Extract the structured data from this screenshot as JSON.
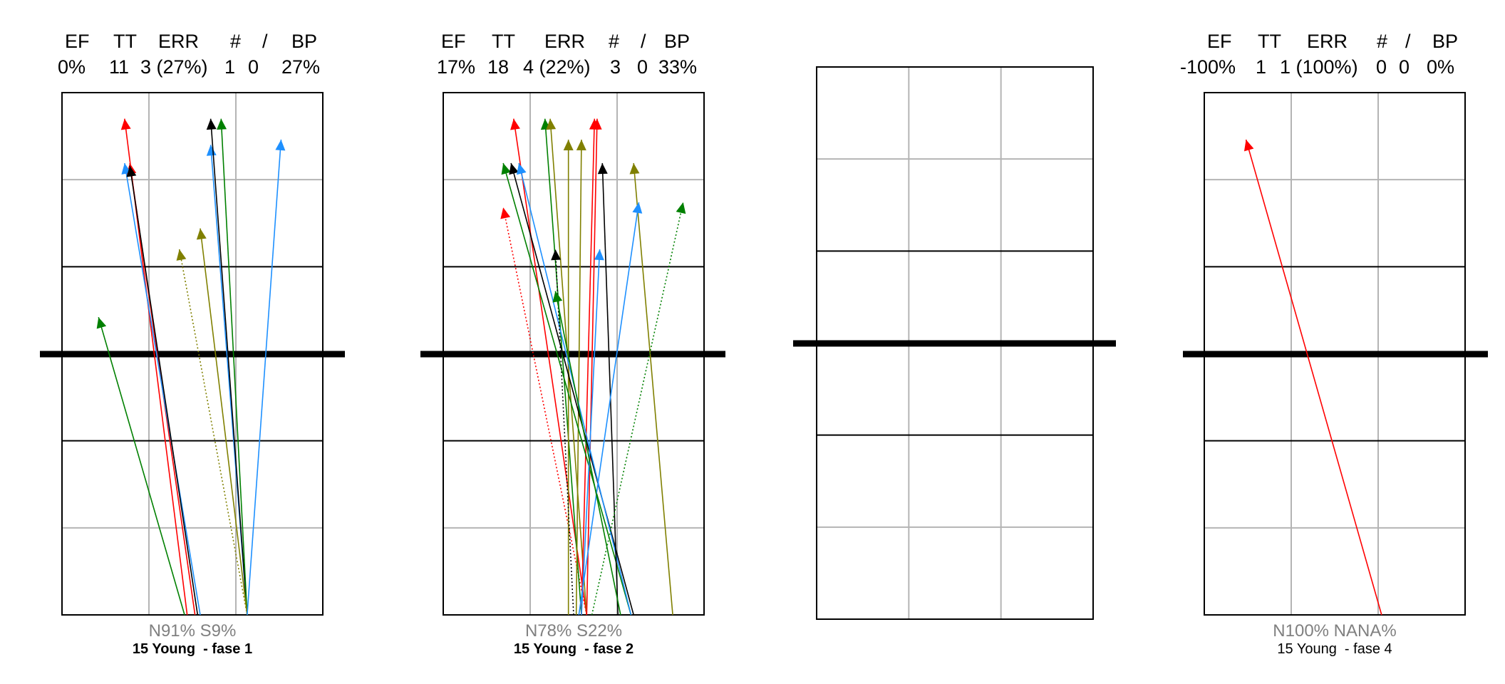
{
  "chart_data": [
    {
      "type": "volleyball-court-trajectory",
      "header_labels": [
        "EF",
        "TT",
        "ERR",
        "#",
        "/",
        "BP"
      ],
      "header_values": [
        "0%",
        "11",
        "3 (27%)",
        "1",
        "0",
        "27%"
      ],
      "footer_pct": "N91%  S9%",
      "caption": "15 Young  - fase 1",
      "caption_bold": true,
      "arrows": [
        {
          "from": [
            0.48,
            1.0
          ],
          "to": [
            0.24,
            0.05
          ],
          "color": "#ff0000",
          "dotted": false
        },
        {
          "from": [
            0.51,
            1.0
          ],
          "to": [
            0.26,
            0.135
          ],
          "color": "#ff0000",
          "dotted": false
        },
        {
          "from": [
            0.53,
            1.0
          ],
          "to": [
            0.24,
            0.135
          ],
          "color": "#1e90ff",
          "dotted": false
        },
        {
          "from": [
            0.52,
            1.0
          ],
          "to": [
            0.26,
            0.14
          ],
          "color": "#000000",
          "dotted": false
        },
        {
          "from": [
            0.71,
            1.0
          ],
          "to": [
            0.57,
            0.1
          ],
          "color": "#1e90ff",
          "dotted": false
        },
        {
          "from": [
            0.71,
            1.0
          ],
          "to": [
            0.57,
            0.05
          ],
          "color": "#000000",
          "dotted": false
        },
        {
          "from": [
            0.71,
            1.0
          ],
          "to": [
            0.61,
            0.05
          ],
          "color": "#008000",
          "dotted": false
        },
        {
          "from": [
            0.71,
            1.0
          ],
          "to": [
            0.53,
            0.26
          ],
          "color": "#808000",
          "dotted": false
        },
        {
          "from": [
            0.71,
            1.0
          ],
          "to": [
            0.45,
            0.3
          ],
          "color": "#808000",
          "dotted": true
        },
        {
          "from": [
            0.71,
            1.0
          ],
          "to": [
            0.84,
            0.09
          ],
          "color": "#1e90ff",
          "dotted": false
        },
        {
          "from": [
            0.47,
            1.0
          ],
          "to": [
            0.14,
            0.43
          ],
          "color": "#008000",
          "dotted": false
        }
      ]
    },
    {
      "type": "volleyball-court-trajectory",
      "header_labels": [
        "EF",
        "TT",
        "ERR",
        "#",
        "/",
        "BP"
      ],
      "header_values": [
        "17%",
        "18",
        "4 (22%)",
        "3",
        "0",
        "33%"
      ],
      "footer_pct": "N78%  S22%",
      "caption": "15 Young  - fase 2",
      "caption_bold": true,
      "arrows": [
        {
          "from": [
            0.55,
            1.0
          ],
          "to": [
            0.27,
            0.05
          ],
          "color": "#ff0000",
          "dotted": false
        },
        {
          "from": [
            0.55,
            1.0
          ],
          "to": [
            0.23,
            0.22
          ],
          "color": "#ff0000",
          "dotted": true
        },
        {
          "from": [
            0.53,
            1.0
          ],
          "to": [
            0.39,
            0.05
          ],
          "color": "#008000",
          "dotted": false
        },
        {
          "from": [
            0.55,
            1.0
          ],
          "to": [
            0.41,
            0.05
          ],
          "color": "#808000",
          "dotted": false
        },
        {
          "from": [
            0.48,
            1.0
          ],
          "to": [
            0.48,
            0.09
          ],
          "color": "#808000",
          "dotted": false
        },
        {
          "from": [
            0.51,
            1.0
          ],
          "to": [
            0.53,
            0.09
          ],
          "color": "#808000",
          "dotted": false
        },
        {
          "from": [
            0.53,
            1.0
          ],
          "to": [
            0.58,
            0.05
          ],
          "color": "#ff0000",
          "dotted": false
        },
        {
          "from": [
            0.55,
            1.0
          ],
          "to": [
            0.59,
            0.05
          ],
          "color": "#ff0000",
          "dotted": false
        },
        {
          "from": [
            0.72,
            1.0
          ],
          "to": [
            0.23,
            0.135
          ],
          "color": "#008000",
          "dotted": false
        },
        {
          "from": [
            0.73,
            1.0
          ],
          "to": [
            0.26,
            0.135
          ],
          "color": "#000000",
          "dotted": false
        },
        {
          "from": [
            0.72,
            1.0
          ],
          "to": [
            0.29,
            0.135
          ],
          "color": "#1e90ff",
          "dotted": false
        },
        {
          "from": [
            0.67,
            1.0
          ],
          "to": [
            0.61,
            0.135
          ],
          "color": "#000000",
          "dotted": false
        },
        {
          "from": [
            0.88,
            1.0
          ],
          "to": [
            0.73,
            0.135
          ],
          "color": "#808000",
          "dotted": false
        },
        {
          "from": [
            0.52,
            1.0
          ],
          "to": [
            0.75,
            0.21
          ],
          "color": "#1e90ff",
          "dotted": false
        },
        {
          "from": [
            0.53,
            1.0
          ],
          "to": [
            0.6,
            0.3
          ],
          "color": "#1e90ff",
          "dotted": false
        },
        {
          "from": [
            0.5,
            1.0
          ],
          "to": [
            0.43,
            0.3
          ],
          "color": "#000000",
          "dotted": true
        },
        {
          "from": [
            0.68,
            1.0
          ],
          "to": [
            0.43,
            0.38
          ],
          "color": "#008000",
          "dotted": false
        },
        {
          "from": [
            0.57,
            1.0
          ],
          "to": [
            0.92,
            0.21
          ],
          "color": "#008000",
          "dotted": true
        }
      ]
    },
    {
      "type": "volleyball-court-trajectory",
      "header_labels": [],
      "header_values": [],
      "footer_pct": "",
      "caption": "",
      "caption_bold": false,
      "arrows": []
    },
    {
      "type": "volleyball-court-trajectory",
      "header_labels": [
        "EF",
        "TT",
        "ERR",
        "#",
        "/",
        "BP"
      ],
      "header_values": [
        "-100%",
        "1",
        "1 (100%)",
        "0",
        "0",
        "0%"
      ],
      "footer_pct": "N100%  NANA%",
      "caption": "15 Young  - fase 4",
      "caption_bold": false,
      "arrows": [
        {
          "from": [
            0.68,
            1.0
          ],
          "to": [
            0.16,
            0.09
          ],
          "color": "#ff0000",
          "dotted": false
        }
      ]
    }
  ]
}
